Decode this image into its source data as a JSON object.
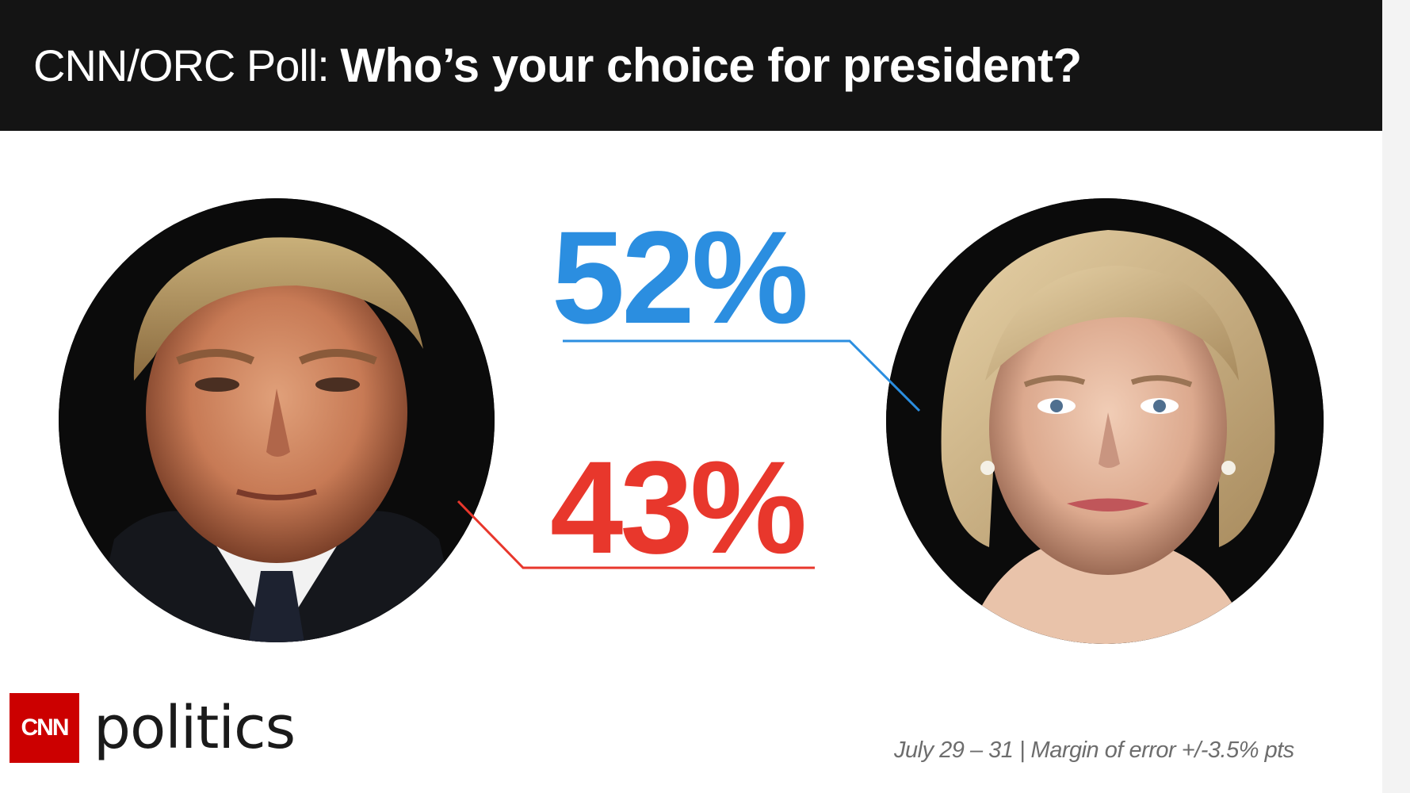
{
  "header": {
    "title_prefix": "CNN/ORC Poll: ",
    "title_main": "Who’s your choice for president?"
  },
  "results": {
    "clinton_pct": "52%",
    "trump_pct": "43%"
  },
  "colors": {
    "clinton_blue": "#2b8ee0",
    "trump_red": "#e8372c",
    "header_bg": "#141414",
    "logo_red": "#cc0000"
  },
  "brand": {
    "logo_text": "CNN",
    "wordmark": "politics"
  },
  "footer": {
    "note": "July 29 – 31 | Margin of error +/-3.5% pts"
  }
}
